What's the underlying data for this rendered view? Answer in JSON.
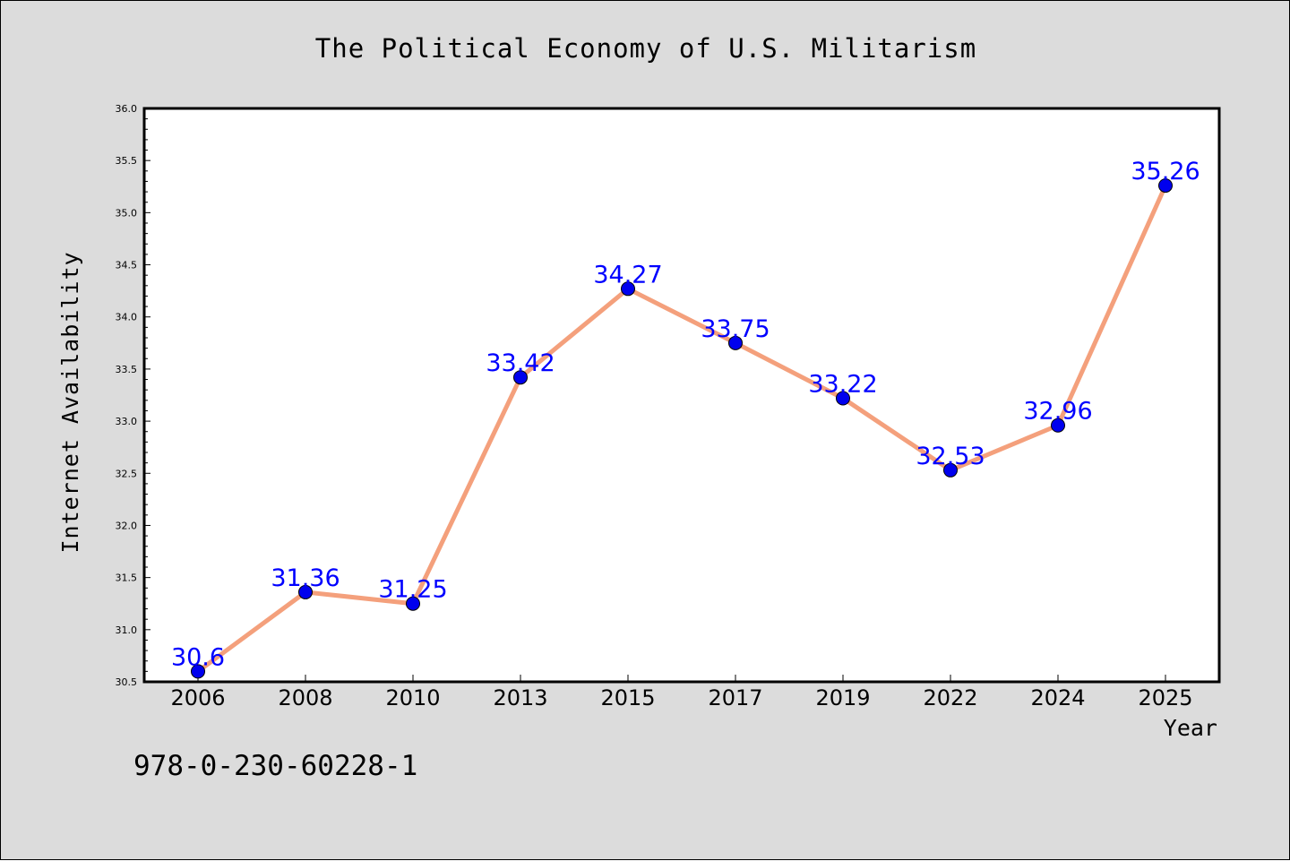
{
  "chart_data": {
    "type": "line",
    "title": "The Political Economy of U.S. Militarism",
    "xlabel": "Year",
    "ylabel": "Internet Availability",
    "categories": [
      "2006",
      "2008",
      "2010",
      "2013",
      "2015",
      "2017",
      "2019",
      "2022",
      "2024",
      "2025"
    ],
    "series": [
      {
        "values": [
          30.6,
          31.36,
          31.25,
          33.42,
          34.27,
          33.75,
          33.22,
          32.53,
          32.96,
          35.26
        ],
        "labels": [
          "30.6",
          "31.36",
          "31.25",
          "33.42",
          "34.27",
          "33.75",
          "33.22",
          "32.53",
          "32.96",
          "35.26"
        ],
        "line_color": "#f4a07c",
        "marker_color": "#0000ee",
        "label_color": "#0000ff"
      }
    ],
    "ylim": [
      30.5,
      36.0
    ],
    "yticks": [
      "30.5",
      "31.0",
      "31.5",
      "32.0",
      "32.5",
      "33.0",
      "33.5",
      "34.0",
      "34.5",
      "35.0",
      "35.5",
      "36.0"
    ],
    "grid": false,
    "legend": "none"
  },
  "footer_code": "978-0-230-60228-1",
  "colors": {
    "background": "#dcdcdc",
    "plot_area": "#ffffff",
    "text": "#000000"
  }
}
